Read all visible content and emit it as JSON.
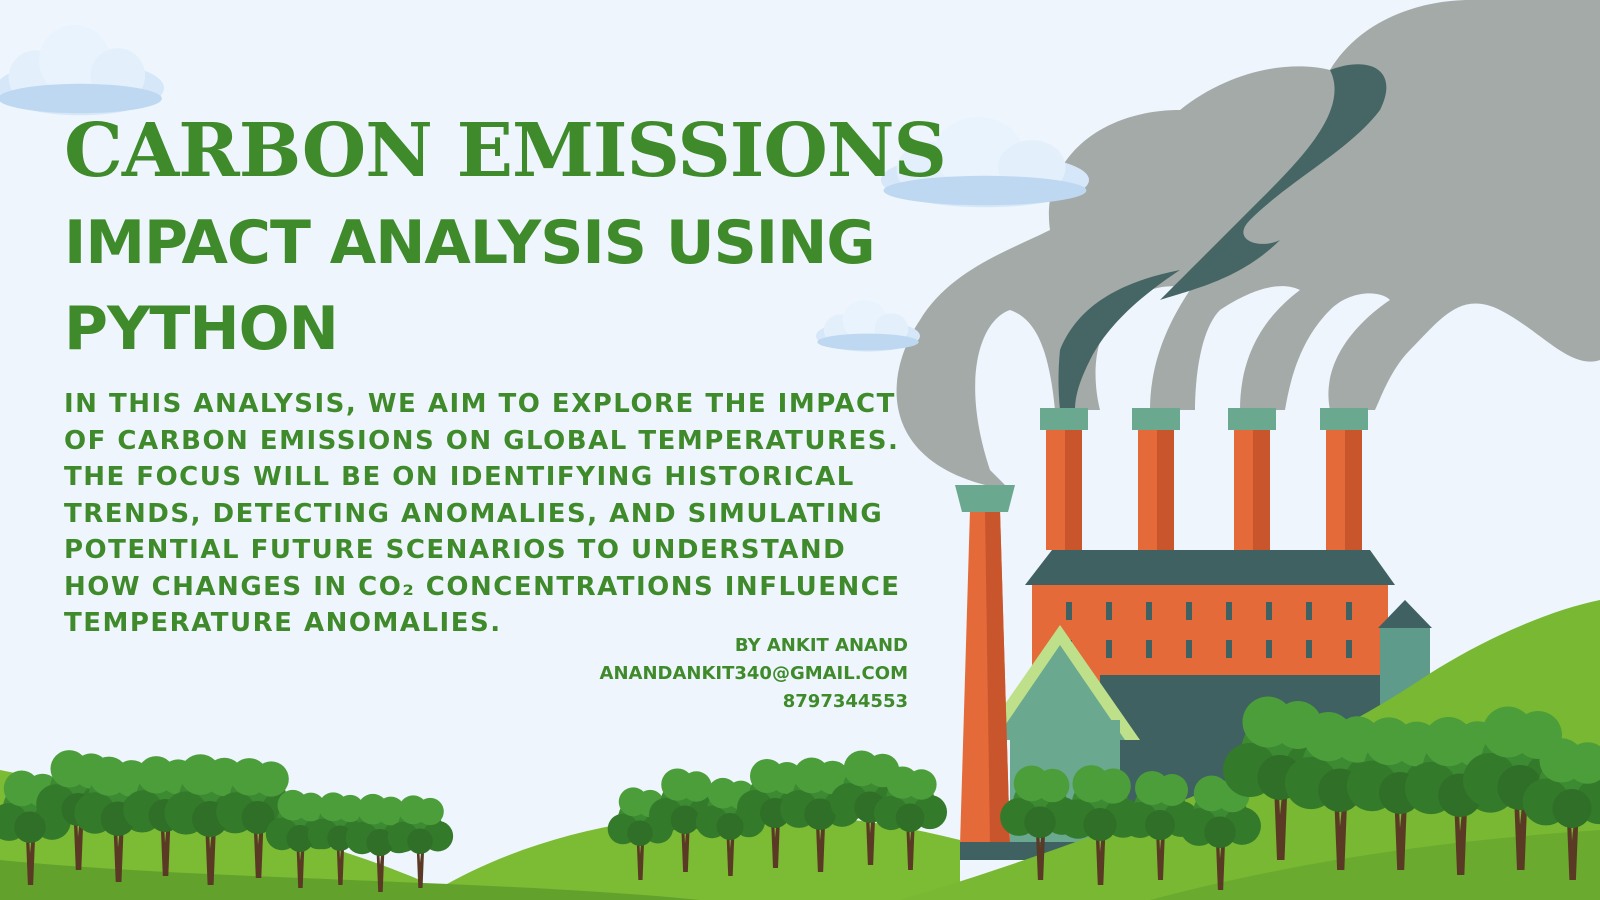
{
  "title": {
    "line1": "CARBON EMISSIONS",
    "line2": "IMPACT ANALYSIS USING PYTHON"
  },
  "description": "IN THIS ANALYSIS, WE AIM TO EXPLORE THE IMPACT OF CARBON EMISSIONS ON GLOBAL TEMPERATURES. THE FOCUS WILL BE ON IDENTIFYING HISTORICAL TRENDS, DETECTING ANOMALIES, AND SIMULATING POTENTIAL FUTURE SCENARIOS TO UNDERSTAND HOW CHANGES IN CO₂ CONCENTRATIONS INFLUENCE TEMPERATURE ANOMALIES.",
  "credits": {
    "author": "BY ANKIT ANAND",
    "email": "ANANDANKIT340@GMAIL.COM",
    "phone": "8797344553"
  },
  "colors": {
    "background": "#eef5fc",
    "text_green": "#3f8a2a",
    "hill_light": "#7cbb34",
    "hill_dark": "#5a9a2a",
    "brick": "#e56a3a",
    "roof": "#3f6161",
    "stack_cap": "#6aa98f",
    "smoke_light": "#a3aaa6",
    "smoke_dark": "#476866",
    "tree": "#3f8c33",
    "trunk": "#5a3a24",
    "cloud": "#dcebfa"
  },
  "icons": {
    "clouds": "cloud-icon",
    "factory": "factory-icon",
    "trees": "tree-icon"
  }
}
